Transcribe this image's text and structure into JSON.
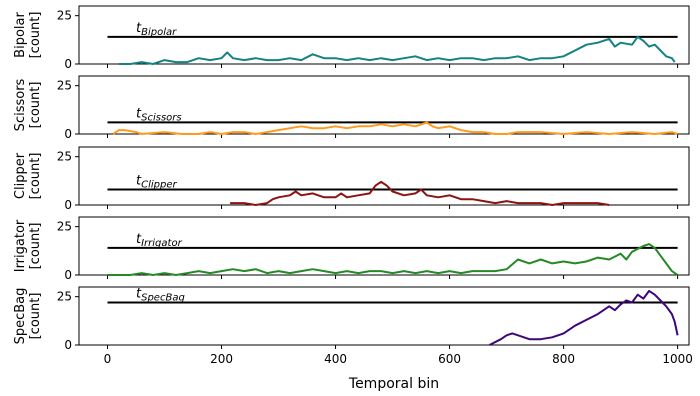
{
  "chart_data": {
    "type": "line",
    "xlabel": "Temporal bin",
    "x_ticks": [
      0,
      200,
      400,
      600,
      800,
      1000
    ],
    "xlim": [
      -50,
      1020
    ],
    "ylim": [
      0,
      30
    ],
    "y_ticks": [
      0,
      25
    ],
    "grid": false,
    "series": [
      {
        "name": "Bipolar",
        "ylabel_line1": "Bipolar",
        "ylabel_line2": "[count]",
        "color": "#138382",
        "threshold": 14,
        "threshold_symbol": "t",
        "threshold_sub": "Bipolar",
        "points": [
          [
            20,
            0
          ],
          [
            40,
            0
          ],
          [
            60,
            1
          ],
          [
            80,
            0
          ],
          [
            100,
            2
          ],
          [
            120,
            1
          ],
          [
            140,
            1
          ],
          [
            160,
            3
          ],
          [
            180,
            2
          ],
          [
            200,
            3
          ],
          [
            210,
            6
          ],
          [
            220,
            3
          ],
          [
            240,
            2
          ],
          [
            260,
            3
          ],
          [
            280,
            2
          ],
          [
            300,
            2
          ],
          [
            320,
            3
          ],
          [
            340,
            2
          ],
          [
            360,
            5
          ],
          [
            380,
            3
          ],
          [
            400,
            3
          ],
          [
            420,
            2
          ],
          [
            440,
            3
          ],
          [
            460,
            2
          ],
          [
            480,
            3
          ],
          [
            500,
            2
          ],
          [
            520,
            3
          ],
          [
            540,
            4
          ],
          [
            560,
            2
          ],
          [
            580,
            3
          ],
          [
            600,
            2
          ],
          [
            620,
            3
          ],
          [
            640,
            3
          ],
          [
            660,
            2
          ],
          [
            680,
            3
          ],
          [
            700,
            3
          ],
          [
            720,
            4
          ],
          [
            740,
            2
          ],
          [
            760,
            3
          ],
          [
            780,
            3
          ],
          [
            800,
            4
          ],
          [
            820,
            7
          ],
          [
            840,
            10
          ],
          [
            860,
            11
          ],
          [
            880,
            13
          ],
          [
            890,
            9
          ],
          [
            900,
            11
          ],
          [
            920,
            10
          ],
          [
            930,
            14
          ],
          [
            940,
            12
          ],
          [
            950,
            9
          ],
          [
            960,
            10
          ],
          [
            970,
            7
          ],
          [
            980,
            4
          ],
          [
            990,
            3
          ],
          [
            995,
            1
          ]
        ]
      },
      {
        "name": "Scissors",
        "ylabel_line1": "Scissors",
        "ylabel_line2": "[count]",
        "color": "#ff9a1c",
        "threshold": 6,
        "threshold_symbol": "t",
        "threshold_sub": "Scissors",
        "points": [
          [
            10,
            0
          ],
          [
            20,
            2
          ],
          [
            30,
            2
          ],
          [
            50,
            1
          ],
          [
            60,
            0
          ],
          [
            100,
            1
          ],
          [
            130,
            0
          ],
          [
            160,
            0
          ],
          [
            180,
            1
          ],
          [
            200,
            0
          ],
          [
            220,
            1
          ],
          [
            240,
            1
          ],
          [
            260,
            0
          ],
          [
            280,
            1
          ],
          [
            300,
            2
          ],
          [
            320,
            3
          ],
          [
            340,
            4
          ],
          [
            360,
            3
          ],
          [
            380,
            3
          ],
          [
            400,
            4
          ],
          [
            420,
            3
          ],
          [
            440,
            4
          ],
          [
            460,
            4
          ],
          [
            480,
            5
          ],
          [
            500,
            4
          ],
          [
            520,
            5
          ],
          [
            540,
            4
          ],
          [
            560,
            6
          ],
          [
            570,
            4
          ],
          [
            580,
            3
          ],
          [
            600,
            4
          ],
          [
            620,
            2
          ],
          [
            640,
            1
          ],
          [
            660,
            1
          ],
          [
            680,
            0
          ],
          [
            700,
            0
          ],
          [
            720,
            1
          ],
          [
            760,
            1
          ],
          [
            800,
            0
          ],
          [
            840,
            1
          ],
          [
            880,
            0
          ],
          [
            920,
            1
          ],
          [
            960,
            0
          ],
          [
            990,
            1
          ],
          [
            1000,
            0
          ]
        ]
      },
      {
        "name": "Clipper",
        "ylabel_line1": "Clipper",
        "ylabel_line2": "[count]",
        "color": "#8b1310",
        "threshold": 8,
        "threshold_symbol": "t",
        "threshold_sub": "Clipper",
        "points": [
          [
            215,
            1
          ],
          [
            220,
            1
          ],
          [
            240,
            1
          ],
          [
            260,
            0
          ],
          [
            280,
            1
          ],
          [
            290,
            3
          ],
          [
            300,
            4
          ],
          [
            320,
            5
          ],
          [
            330,
            7
          ],
          [
            340,
            5
          ],
          [
            360,
            6
          ],
          [
            380,
            4
          ],
          [
            400,
            4
          ],
          [
            410,
            6
          ],
          [
            420,
            4
          ],
          [
            440,
            5
          ],
          [
            460,
            6
          ],
          [
            470,
            10
          ],
          [
            480,
            12
          ],
          [
            490,
            10
          ],
          [
            500,
            7
          ],
          [
            520,
            5
          ],
          [
            540,
            6
          ],
          [
            550,
            8
          ],
          [
            560,
            5
          ],
          [
            580,
            4
          ],
          [
            600,
            5
          ],
          [
            620,
            3
          ],
          [
            640,
            3
          ],
          [
            660,
            2
          ],
          [
            680,
            1
          ],
          [
            700,
            2
          ],
          [
            720,
            1
          ],
          [
            740,
            1
          ],
          [
            760,
            1
          ],
          [
            780,
            0
          ],
          [
            800,
            1
          ],
          [
            820,
            1
          ],
          [
            840,
            1
          ],
          [
            860,
            1
          ],
          [
            880,
            0
          ]
        ]
      },
      {
        "name": "Irrigator",
        "ylabel_line1": "Irrigator",
        "ylabel_line2": "[count]",
        "color": "#258a26",
        "threshold": 14,
        "threshold_symbol": "t",
        "threshold_sub": "Irrigator",
        "points": [
          [
            0,
            0
          ],
          [
            40,
            0
          ],
          [
            60,
            1
          ],
          [
            80,
            0
          ],
          [
            100,
            1
          ],
          [
            120,
            0
          ],
          [
            140,
            1
          ],
          [
            160,
            2
          ],
          [
            180,
            1
          ],
          [
            200,
            2
          ],
          [
            220,
            3
          ],
          [
            240,
            2
          ],
          [
            260,
            3
          ],
          [
            280,
            1
          ],
          [
            300,
            2
          ],
          [
            320,
            1
          ],
          [
            340,
            2
          ],
          [
            360,
            3
          ],
          [
            380,
            2
          ],
          [
            400,
            1
          ],
          [
            420,
            2
          ],
          [
            440,
            1
          ],
          [
            460,
            2
          ],
          [
            480,
            2
          ],
          [
            500,
            1
          ],
          [
            520,
            2
          ],
          [
            540,
            1
          ],
          [
            560,
            2
          ],
          [
            580,
            1
          ],
          [
            600,
            2
          ],
          [
            620,
            1
          ],
          [
            640,
            2
          ],
          [
            660,
            2
          ],
          [
            680,
            2
          ],
          [
            700,
            3
          ],
          [
            720,
            8
          ],
          [
            740,
            6
          ],
          [
            760,
            8
          ],
          [
            780,
            6
          ],
          [
            800,
            7
          ],
          [
            820,
            6
          ],
          [
            840,
            7
          ],
          [
            860,
            9
          ],
          [
            880,
            8
          ],
          [
            900,
            11
          ],
          [
            910,
            8
          ],
          [
            920,
            12
          ],
          [
            940,
            15
          ],
          [
            950,
            16
          ],
          [
            960,
            14
          ],
          [
            970,
            10
          ],
          [
            980,
            6
          ],
          [
            990,
            2
          ],
          [
            1000,
            0
          ]
        ]
      },
      {
        "name": "SpecBag",
        "ylabel_line1": "SpecBag",
        "ylabel_line2": "[count]",
        "color": "#3d077b",
        "threshold": 22,
        "threshold_symbol": "t",
        "threshold_sub": "SpecBag",
        "points": [
          [
            670,
            0
          ],
          [
            690,
            3
          ],
          [
            700,
            5
          ],
          [
            710,
            6
          ],
          [
            720,
            5
          ],
          [
            740,
            3
          ],
          [
            760,
            3
          ],
          [
            780,
            4
          ],
          [
            800,
            6
          ],
          [
            820,
            10
          ],
          [
            840,
            13
          ],
          [
            860,
            16
          ],
          [
            880,
            20
          ],
          [
            890,
            18
          ],
          [
            900,
            21
          ],
          [
            910,
            23
          ],
          [
            920,
            22
          ],
          [
            930,
            26
          ],
          [
            940,
            24
          ],
          [
            950,
            28
          ],
          [
            960,
            26
          ],
          [
            970,
            23
          ],
          [
            980,
            20
          ],
          [
            990,
            16
          ],
          [
            995,
            12
          ],
          [
            1000,
            5
          ]
        ]
      }
    ]
  }
}
